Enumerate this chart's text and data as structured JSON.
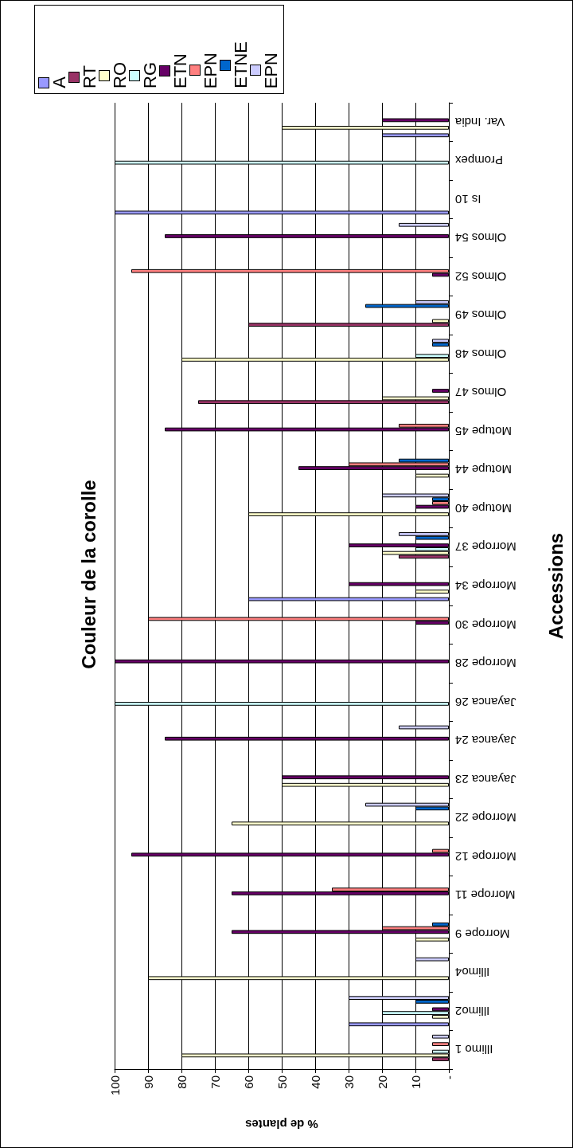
{
  "chart_data": {
    "type": "bar",
    "orientation": "horizontal",
    "title": "Couleur de la corolle",
    "xlabel": "% de plantes",
    "ylabel": "Accessions",
    "categories": [
      "Var. India",
      "Prompex",
      "Is 10",
      "Olmos 54",
      "Olmos 52",
      "Olmos 49",
      "Olmos 48",
      "Olmos 47",
      "Motupe 45",
      "Motupe 44",
      "Motupe 40",
      "Morrope 37",
      "Morrope 34",
      "Morrope 30",
      "Morrope 28",
      "Jayanca 26",
      "Jayanca 24",
      "Jayanca 23",
      "Morrope 22",
      "Morrope 12",
      "Morrope 11",
      "Morrope 9",
      "Illimo4",
      "Illimo2",
      "Illimo 1"
    ],
    "series": [
      {
        "name": "A",
        "color": "#9999ff",
        "values": [
          20,
          null,
          100,
          null,
          null,
          null,
          null,
          null,
          null,
          null,
          null,
          null,
          60,
          null,
          null,
          null,
          null,
          null,
          null,
          null,
          null,
          null,
          null,
          30,
          null
        ]
      },
      {
        "name": "RT",
        "color": "#993366",
        "values": [
          null,
          null,
          null,
          null,
          null,
          60,
          null,
          75,
          null,
          null,
          null,
          15,
          null,
          null,
          null,
          null,
          null,
          null,
          null,
          null,
          null,
          null,
          null,
          null,
          5
        ]
      },
      {
        "name": "RO",
        "color": "#ffffcc",
        "values": [
          50,
          null,
          null,
          null,
          null,
          5,
          80,
          20,
          null,
          10,
          60,
          20,
          10,
          null,
          null,
          null,
          null,
          50,
          65,
          null,
          null,
          10,
          90,
          5,
          80
        ]
      },
      {
        "name": "RG",
        "color": "#ccffff",
        "values": [
          null,
          100,
          null,
          null,
          null,
          null,
          10,
          null,
          null,
          null,
          null,
          10,
          null,
          null,
          null,
          100,
          null,
          null,
          null,
          null,
          null,
          null,
          null,
          20,
          5
        ]
      },
      {
        "name": "ETN",
        "color": "#660066",
        "values": [
          20,
          null,
          null,
          85,
          5,
          null,
          null,
          5,
          85,
          45,
          10,
          30,
          30,
          10,
          100,
          null,
          85,
          50,
          null,
          95,
          65,
          65,
          null,
          5,
          null
        ]
      },
      {
        "name": "EPN",
        "color": "#ff8080",
        "values": [
          null,
          null,
          null,
          null,
          95,
          null,
          null,
          null,
          15,
          30,
          5,
          null,
          null,
          90,
          null,
          null,
          null,
          null,
          null,
          5,
          35,
          20,
          null,
          null,
          5
        ]
      },
      {
        "name": "ETNE",
        "color": "#0066cc",
        "values": [
          null,
          null,
          null,
          null,
          null,
          25,
          5,
          null,
          null,
          15,
          5,
          10,
          null,
          null,
          null,
          null,
          null,
          null,
          10,
          null,
          null,
          5,
          null,
          10,
          null
        ]
      },
      {
        "name": "EPN",
        "color": "#ccccff",
        "values": [
          null,
          null,
          null,
          15,
          null,
          10,
          5,
          null,
          null,
          null,
          20,
          15,
          null,
          null,
          null,
          null,
          15,
          null,
          25,
          null,
          null,
          null,
          10,
          30,
          5
        ]
      }
    ],
    "xlim": [
      100,
      0
    ],
    "xticks": [
      100,
      90,
      80,
      70,
      60,
      50,
      40,
      30,
      20,
      10,
      {
        "value": 0,
        "label": "-"
      }
    ],
    "grid": "x",
    "legend": "top left"
  }
}
